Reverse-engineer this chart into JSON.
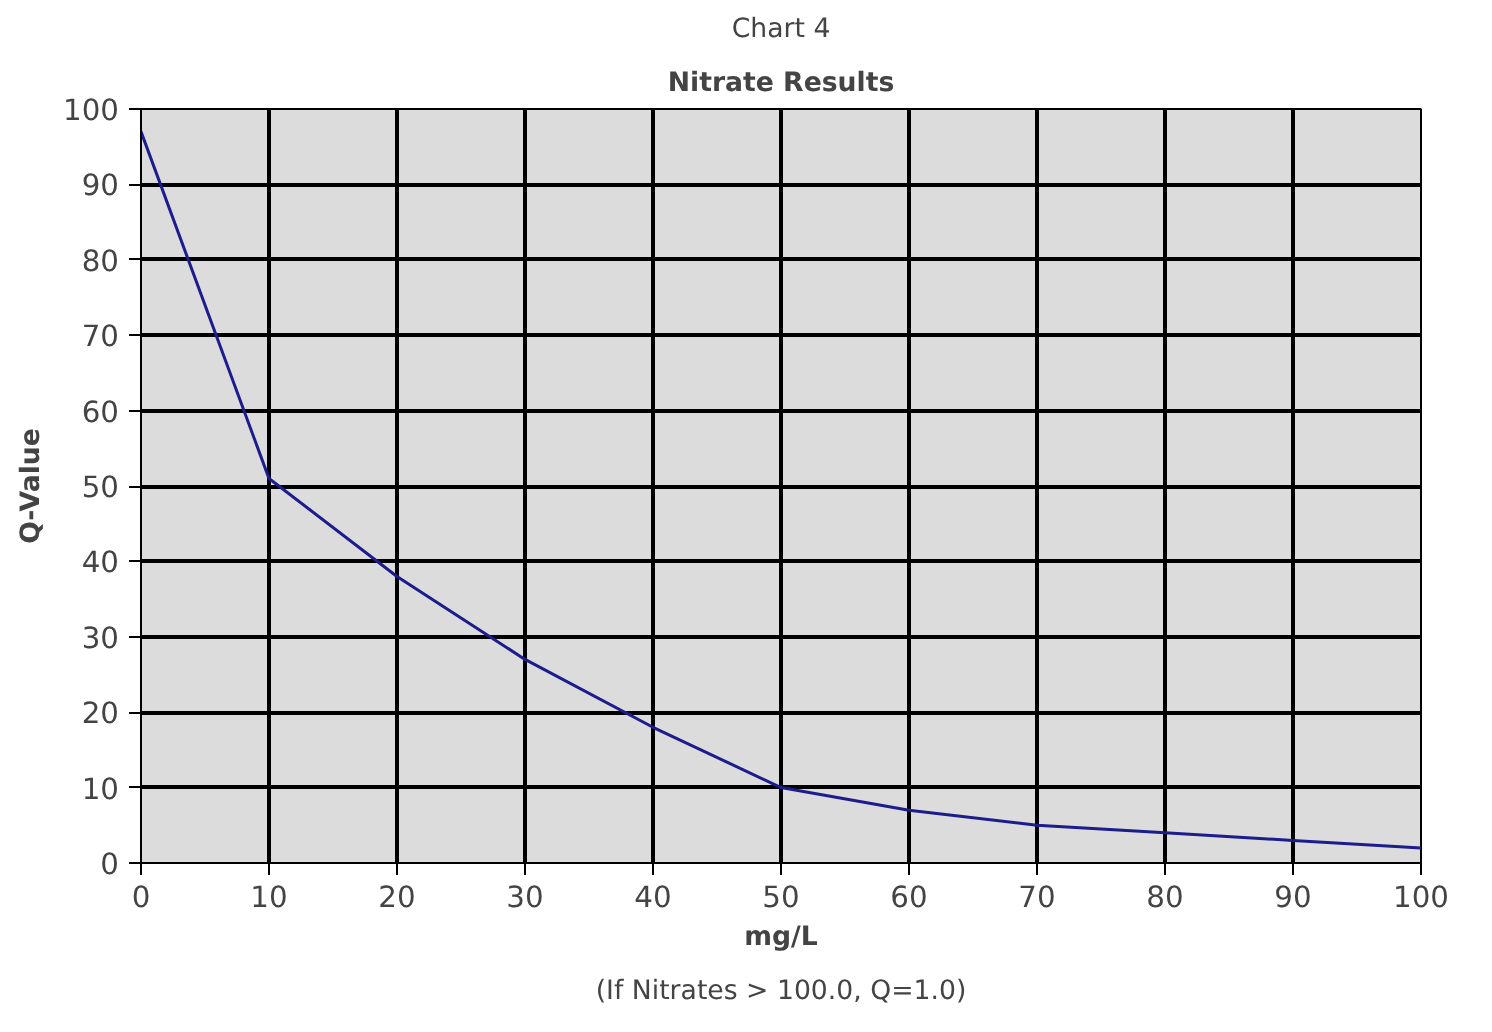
{
  "chart_data": {
    "type": "line",
    "title": "Nitrate Results",
    "subtitle": "Chart 4",
    "xlabel": "mg/L",
    "ylabel": "Q-Value",
    "x": [
      0,
      10,
      20,
      30,
      40,
      50,
      60,
      70,
      80,
      90,
      100
    ],
    "series": [
      {
        "color": "#1c1c8c",
        "values": [
          97,
          51,
          38,
          27,
          18,
          10,
          7,
          5,
          4,
          3,
          2
        ]
      }
    ],
    "xlim": [
      0,
      100
    ],
    "ylim": [
      0,
      100
    ],
    "xticks": [
      0,
      10,
      20,
      30,
      40,
      50,
      60,
      70,
      80,
      90,
      100
    ],
    "yticks": [
      0,
      10,
      20,
      30,
      40,
      50,
      60,
      70,
      80,
      90,
      100
    ],
    "grid": true,
    "marker": "none",
    "line_style": "solid",
    "annotations": [
      "(If Nitrates > 100.0, Q=1.0)"
    ]
  }
}
